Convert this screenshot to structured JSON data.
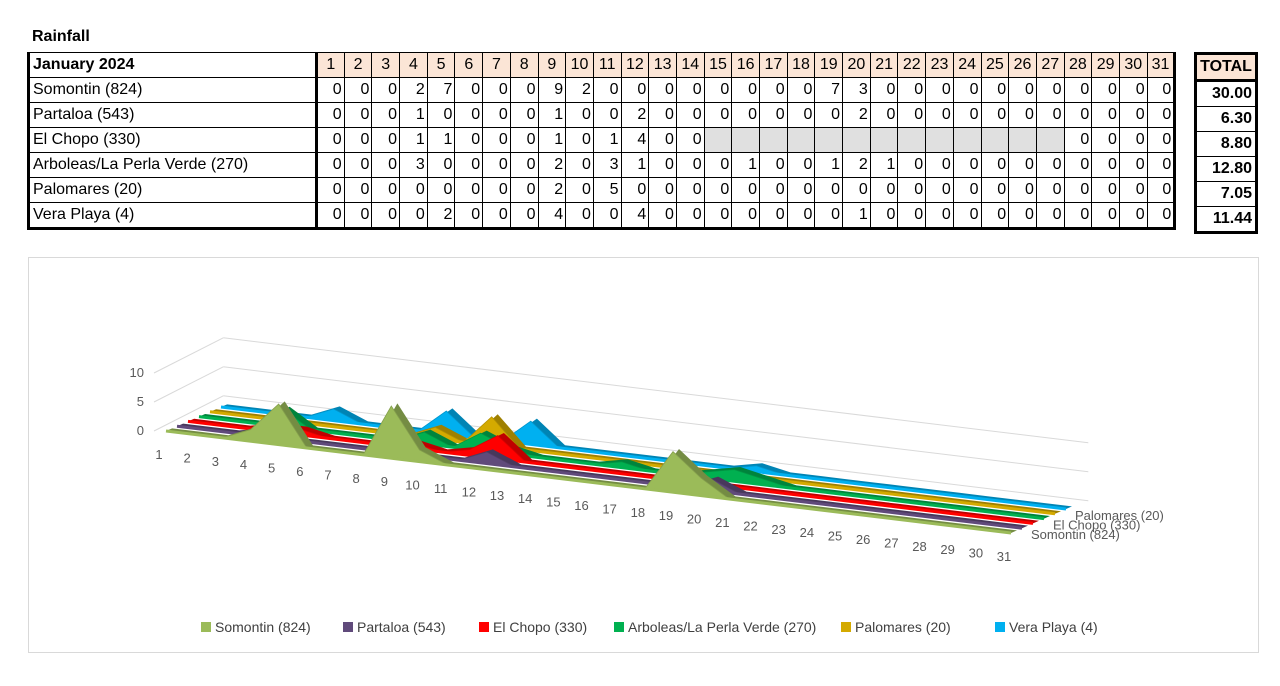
{
  "title": "Rainfall",
  "table": {
    "month_label": "January 2024",
    "days": [
      "1",
      "2",
      "3",
      "4",
      "5",
      "6",
      "7",
      "8",
      "9",
      "10",
      "11",
      "12",
      "13",
      "14",
      "15",
      "16",
      "17",
      "18",
      "19",
      "20",
      "21",
      "22",
      "23",
      "24",
      "25",
      "26",
      "27",
      "28",
      "29",
      "30",
      "31"
    ],
    "total_header": "TOTAL",
    "rows": [
      {
        "station": "Somontin (824)",
        "values": [
          0,
          0,
          0,
          2,
          7,
          0,
          0,
          0,
          9,
          2,
          0,
          0,
          0,
          0,
          0,
          0,
          0,
          0,
          7,
          3,
          0,
          0,
          0,
          0,
          0,
          0,
          0,
          0,
          0,
          0,
          0
        ],
        "total": "30.00"
      },
      {
        "station": "Partaloa (543)",
        "values": [
          0,
          0,
          0,
          1,
          0,
          0,
          0,
          0,
          1,
          0,
          0,
          2,
          0,
          0,
          0,
          0,
          0,
          0,
          0,
          2,
          0,
          0,
          0,
          0,
          0,
          0,
          0,
          0,
          0,
          0,
          0
        ],
        "total": "6.30"
      },
      {
        "station": "El Chopo (330)",
        "values": [
          0,
          0,
          0,
          1,
          1,
          0,
          0,
          0,
          1,
          0,
          1,
          4,
          0,
          0,
          null,
          null,
          null,
          null,
          null,
          null,
          null,
          null,
          null,
          null,
          null,
          null,
          null,
          0,
          0,
          0,
          0
        ],
        "total": "8.80"
      },
      {
        "station": "Arboleas/La Perla Verde (270)",
        "values": [
          0,
          0,
          0,
          3,
          0,
          0,
          0,
          0,
          2,
          0,
          3,
          1,
          0,
          0,
          0,
          1,
          0,
          0,
          1,
          2,
          1,
          0,
          0,
          0,
          0,
          0,
          0,
          0,
          0,
          0,
          0
        ],
        "total": "12.80"
      },
      {
        "station": "Palomares (20)",
        "values": [
          0,
          0,
          0,
          0,
          0,
          0,
          0,
          0,
          2,
          0,
          5,
          0,
          0,
          0,
          0,
          0,
          0,
          0,
          0,
          0,
          0,
          0,
          0,
          0,
          0,
          0,
          0,
          0,
          0,
          0,
          0
        ],
        "total": "7.05"
      },
      {
        "station": "Vera Playa (4)",
        "values": [
          0,
          0,
          0,
          0,
          2,
          0,
          0,
          0,
          4,
          0,
          0,
          4,
          0,
          0,
          0,
          0,
          0,
          0,
          0,
          1,
          0,
          0,
          0,
          0,
          0,
          0,
          0,
          0,
          0,
          0,
          0
        ],
        "total": "11.44"
      }
    ]
  },
  "chart_data": {
    "type": "area",
    "categories": [
      "1",
      "2",
      "3",
      "4",
      "5",
      "6",
      "7",
      "8",
      "9",
      "10",
      "11",
      "12",
      "13",
      "14",
      "15",
      "16",
      "17",
      "18",
      "19",
      "20",
      "21",
      "22",
      "23",
      "24",
      "25",
      "26",
      "27",
      "28",
      "29",
      "30",
      "31"
    ],
    "y_ticks": [
      "0",
      "5",
      "10"
    ],
    "ylim": [
      0,
      10
    ],
    "depth_labels": [
      "Somontin (824)",
      "El Chopo (330)",
      "Palomares (20)"
    ],
    "legend_position": "bottom",
    "series": [
      {
        "name": "Somontin (824)",
        "color": "#9bbb59",
        "values": [
          0,
          0,
          0,
          2,
          7,
          0,
          0,
          0,
          9,
          2,
          0,
          0,
          0,
          0,
          0,
          0,
          0,
          0,
          7,
          3,
          0,
          0,
          0,
          0,
          0,
          0,
          0,
          0,
          0,
          0,
          0
        ]
      },
      {
        "name": "Partaloa (543)",
        "color": "#604a7b",
        "values": [
          0,
          0,
          0,
          1,
          0,
          0,
          0,
          0,
          1,
          0,
          0,
          2,
          0,
          0,
          0,
          0,
          0,
          0,
          0,
          2,
          0,
          0,
          0,
          0,
          0,
          0,
          0,
          0,
          0,
          0,
          0
        ]
      },
      {
        "name": "El Chopo (330)",
        "color": "#ff0000",
        "values": [
          0,
          0,
          0,
          1,
          1,
          0,
          0,
          0,
          1,
          0,
          1,
          4,
          0,
          0,
          0,
          0,
          0,
          0,
          0,
          0,
          0,
          0,
          0,
          0,
          0,
          0,
          0,
          0,
          0,
          0,
          0
        ]
      },
      {
        "name": "Arboleas/La Perla Verde (270)",
        "color": "#00b050",
        "values": [
          0,
          0,
          0,
          3,
          0,
          0,
          0,
          0,
          2,
          0,
          3,
          1,
          0,
          0,
          0,
          1,
          0,
          0,
          1,
          2,
          1,
          0,
          0,
          0,
          0,
          0,
          0,
          0,
          0,
          0,
          0
        ]
      },
      {
        "name": "Palomares (20)",
        "color": "#d4aa00",
        "values": [
          0,
          0,
          0,
          0,
          0,
          0,
          0,
          0,
          2,
          0,
          5,
          0,
          0,
          0,
          0,
          0,
          0,
          0,
          0,
          0,
          0,
          0,
          0,
          0,
          0,
          0,
          0,
          0,
          0,
          0,
          0
        ]
      },
      {
        "name": "Vera Playa (4)",
        "color": "#00b0f0",
        "values": [
          0,
          0,
          0,
          0,
          2,
          0,
          0,
          0,
          4,
          0,
          0,
          4,
          0,
          0,
          0,
          0,
          0,
          0,
          0,
          1,
          0,
          0,
          0,
          0,
          0,
          0,
          0,
          0,
          0,
          0,
          0
        ]
      }
    ]
  }
}
